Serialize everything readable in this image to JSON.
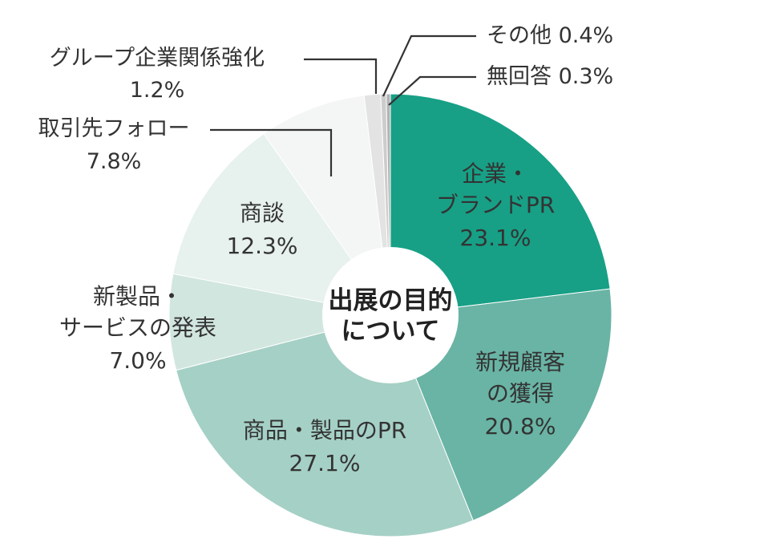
{
  "chart_data": {
    "type": "donut",
    "center_label": [
      "出展の目的",
      "について"
    ],
    "slices": [
      {
        "label": "企業・ブランドPR",
        "label_lines": [
          "企業・",
          "ブランドPR"
        ],
        "value": 23.1,
        "value_text": "23.1%",
        "color": "#17a086",
        "text_color": "#333333"
      },
      {
        "label": "新規顧客の獲得",
        "label_lines": [
          "新規顧客",
          "の獲得"
        ],
        "value": 20.8,
        "value_text": "20.8%",
        "color": "#69b4a5",
        "text_color": "#333333"
      },
      {
        "label": "商品・製品のPR",
        "label_lines": [
          "商品・製品のPR"
        ],
        "value": 27.1,
        "value_text": "27.1%",
        "color": "#a5d0c5",
        "text_color": "#333333"
      },
      {
        "label": "新製品・サービスの発表",
        "label_lines": [
          "新製品・",
          "サービスの発表"
        ],
        "value": 7.0,
        "value_text": "7.0%",
        "color": "#d2e6e0",
        "text_color": "#333333"
      },
      {
        "label": "商談",
        "label_lines": [
          "商談"
        ],
        "value": 12.3,
        "value_text": "12.3%",
        "color": "#e7f1ee",
        "text_color": "#333333"
      },
      {
        "label": "取引先フォロー",
        "label_lines": [
          "取引先フォロー"
        ],
        "value": 7.8,
        "value_text": "7.8%",
        "color": "#f3f6f5",
        "text_color": "#333333"
      },
      {
        "label": "グループ企業関係強化",
        "label_lines": [
          "グループ企業関係強化"
        ],
        "value": 1.2,
        "value_text": "1.2%",
        "color": "#e3e3e3",
        "text_color": "#333333"
      },
      {
        "label": "その他",
        "label_lines": [
          "その他 0.4%"
        ],
        "value": 0.4,
        "value_text": "0.4%",
        "color": "#cccccc",
        "text_color": "#333333"
      },
      {
        "label": "無回答",
        "label_lines": [
          "無回答 0.3%"
        ],
        "value": 0.3,
        "value_text": "0.3%",
        "color": "#b3b3b3",
        "text_color": "#333333"
      }
    ]
  }
}
